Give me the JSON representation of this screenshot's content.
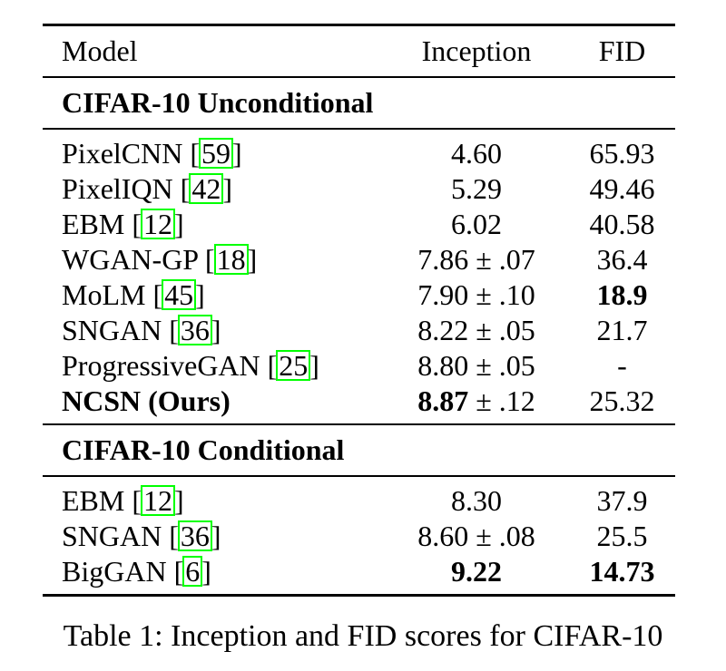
{
  "table": {
    "header": {
      "model": "Model",
      "inception": "Inception",
      "fid": "FID"
    },
    "sections": [
      {
        "title": "CIFAR-10 Unconditional",
        "rows": [
          {
            "model": "PixelCNN",
            "cite": "59",
            "inception": "4.60",
            "fid": "65.93",
            "bold_model": false,
            "bold_inception": false,
            "bold_fid": false
          },
          {
            "model": "PixelIQN",
            "cite": "42",
            "inception": "5.29",
            "fid": "49.46",
            "bold_model": false,
            "bold_inception": false,
            "bold_fid": false
          },
          {
            "model": "EBM",
            "cite": "12",
            "inception": "6.02",
            "fid": "40.58",
            "bold_model": false,
            "bold_inception": false,
            "bold_fid": false
          },
          {
            "model": "WGAN-GP",
            "cite": "18",
            "inception": "7.86",
            "inception_pm": ".07",
            "fid": "36.4",
            "bold_model": false,
            "bold_inception": false,
            "bold_fid": false
          },
          {
            "model": "MoLM",
            "cite": "45",
            "inception": "7.90",
            "inception_pm": ".10",
            "fid": "18.9",
            "bold_model": false,
            "bold_inception": false,
            "bold_fid": true
          },
          {
            "model": "SNGAN",
            "cite": "36",
            "inception": "8.22",
            "inception_pm": ".05",
            "fid": "21.7",
            "bold_model": false,
            "bold_inception": false,
            "bold_fid": false
          },
          {
            "model": "ProgressiveGAN",
            "cite": "25",
            "inception": "8.80",
            "inception_pm": ".05",
            "fid": "-",
            "bold_model": false,
            "bold_inception": false,
            "bold_fid": false
          },
          {
            "model": "NCSN (Ours)",
            "inception": "8.87",
            "inception_pm": ".12",
            "fid": "25.32",
            "bold_model": true,
            "bold_inception": true,
            "bold_fid": false
          }
        ]
      },
      {
        "title": "CIFAR-10 Conditional",
        "rows": [
          {
            "model": "EBM",
            "cite": "12",
            "inception": "8.30",
            "fid": "37.9",
            "bold_model": false,
            "bold_inception": false,
            "bold_fid": false
          },
          {
            "model": "SNGAN",
            "cite": "36",
            "inception": "8.60",
            "inception_pm": ".08",
            "fid": "25.5",
            "bold_model": false,
            "bold_inception": false,
            "bold_fid": false
          },
          {
            "model": "BigGAN",
            "cite": "6",
            "inception": "9.22",
            "fid": "14.73",
            "bold_model": false,
            "bold_inception": true,
            "bold_fid": true
          }
        ]
      }
    ]
  },
  "caption": "Table 1: Inception and FID scores for CIFAR-10",
  "colors": {
    "citation_box": "#00ff00",
    "text": "#000000"
  }
}
